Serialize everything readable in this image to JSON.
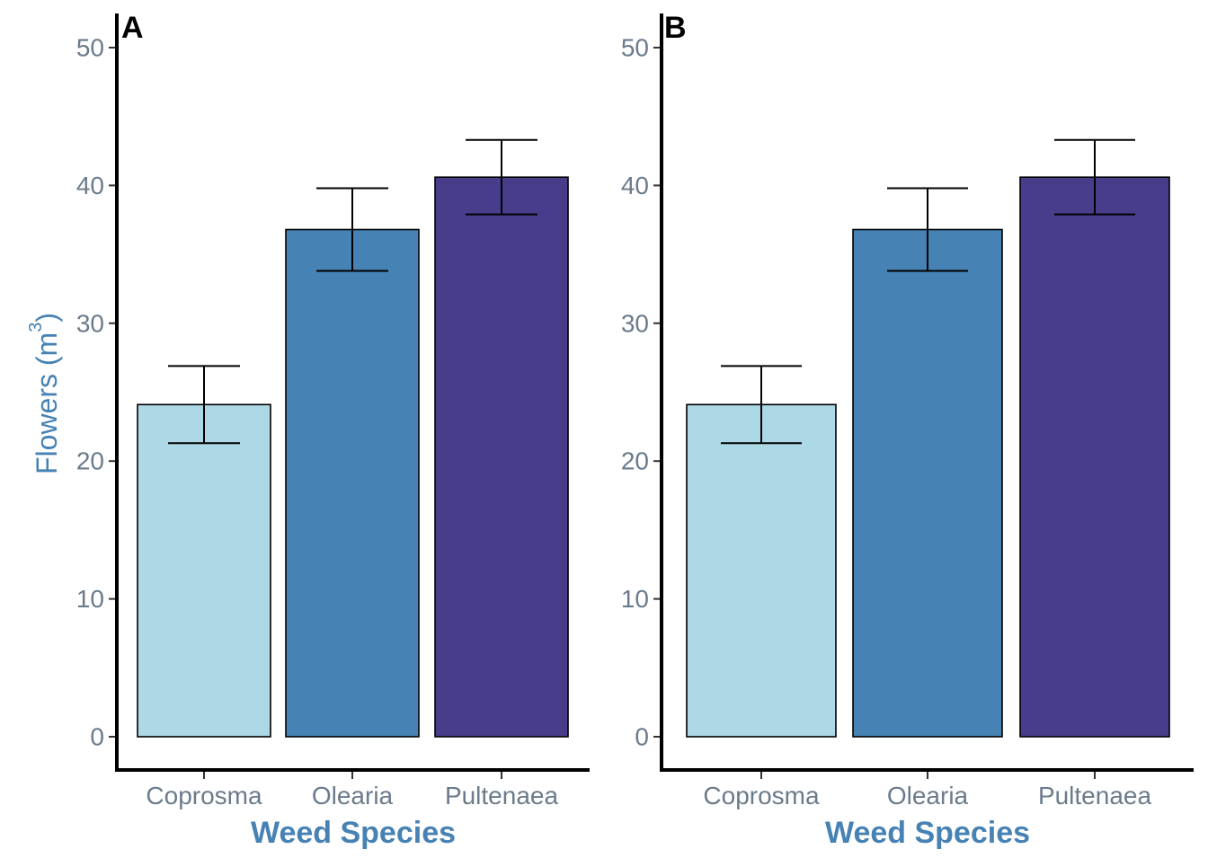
{
  "chart_data": [
    {
      "type": "bar",
      "panel_label": "A",
      "categories": [
        "Coprosma",
        "Olearia",
        "Pultenaea"
      ],
      "values": [
        24.1,
        36.8,
        40.6
      ],
      "error_low": [
        21.3,
        33.8,
        37.9
      ],
      "error_high": [
        26.9,
        39.8,
        43.3
      ],
      "colors": [
        "#add8e6",
        "#4682b4",
        "#483d8b"
      ],
      "xlabel": "Weed Species",
      "ylabel": "Flowers (m³)",
      "ylabel_main": "Flowers",
      "ylabel_unit_base": "m",
      "ylabel_unit_sup": "3",
      "ylim": [
        0,
        50
      ],
      "yticks": [
        0,
        10,
        20,
        30,
        40,
        50
      ],
      "grid": false,
      "legend": "none"
    },
    {
      "type": "bar",
      "panel_label": "B",
      "categories": [
        "Coprosma",
        "Olearia",
        "Pultenaea"
      ],
      "values": [
        24.1,
        36.8,
        40.6
      ],
      "error_low": [
        21.3,
        33.8,
        37.9
      ],
      "error_high": [
        26.9,
        39.8,
        43.3
      ],
      "colors": [
        "#add8e6",
        "#4682b4",
        "#483d8b"
      ],
      "xlabel": "Weed Species",
      "ylabel": "",
      "ylim": [
        0,
        50
      ],
      "yticks": [
        0,
        10,
        20,
        30,
        40,
        50
      ],
      "grid": false,
      "legend": "none"
    }
  ]
}
